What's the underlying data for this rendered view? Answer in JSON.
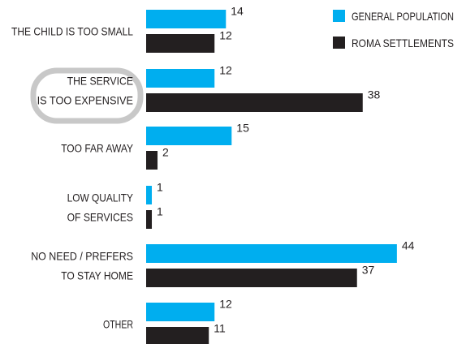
{
  "chart_data": {
    "type": "bar",
    "orientation": "horizontal",
    "categories": [
      [
        "THE CHILD IS TOO SMALL"
      ],
      [
        "THE SERVICE",
        "IS TOO EXPENSIVE"
      ],
      [
        "TOO FAR AWAY"
      ],
      [
        "LOW QUALITY",
        "OF SERVICES"
      ],
      [
        "NO NEED / PREFERS",
        "TO STAY HOME"
      ],
      [
        "OTHER"
      ]
    ],
    "highlighted_category": 1,
    "series": [
      {
        "name": "GENERAL POPULATION",
        "color": "#00aeef",
        "values": [
          14,
          12,
          15,
          1,
          44,
          12
        ]
      },
      {
        "name": "ROMA SETTLEMENTS",
        "color": "#231f20",
        "values": [
          12,
          38,
          2,
          1,
          37,
          11
        ]
      }
    ],
    "legend_position": "top-right",
    "xlim": [
      0,
      44
    ],
    "grid": false,
    "highlight_color": "#c8c8c8"
  }
}
